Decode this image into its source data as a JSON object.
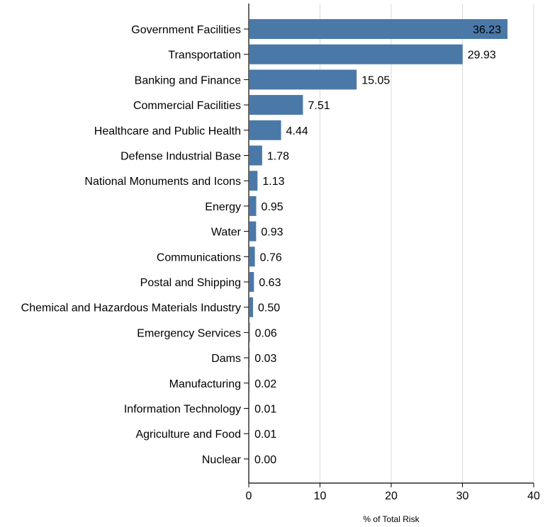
{
  "chart_data": {
    "type": "bar",
    "orientation": "horizontal",
    "title": "",
    "xlabel": "% of Total Risk",
    "ylabel": "",
    "xlim": [
      0,
      40
    ],
    "xticks": [
      0,
      10,
      20,
      30,
      40
    ],
    "grid": true,
    "bar_color": "#4a79a8",
    "categories": [
      "Government Facilities",
      "Transportation",
      "Banking and Finance",
      "Commercial Facilities",
      "Healthcare and Public Health",
      "Defense Industrial Base",
      "National Monuments and Icons",
      "Energy",
      "Water",
      "Communications",
      "Postal and Shipping",
      "Chemical and Hazardous Materials Industry",
      "Emergency Services",
      "Dams",
      "Manufacturing",
      "Information Technology",
      "Agriculture and Food",
      "Nuclear"
    ],
    "values": [
      36.23,
      29.93,
      15.05,
      7.51,
      4.44,
      1.78,
      1.13,
      0.95,
      0.93,
      0.76,
      0.63,
      0.5,
      0.06,
      0.03,
      0.02,
      0.01,
      0.01,
      0.0
    ],
    "value_labels": [
      "36.23",
      "29.93",
      "15.05",
      "7.51",
      "4.44",
      "1.78",
      "1.13",
      "0.95",
      "0.93",
      "0.76",
      "0.63",
      "0.50",
      "0.06",
      "0.03",
      "0.02",
      "0.01",
      "0.01",
      "0.00"
    ]
  }
}
